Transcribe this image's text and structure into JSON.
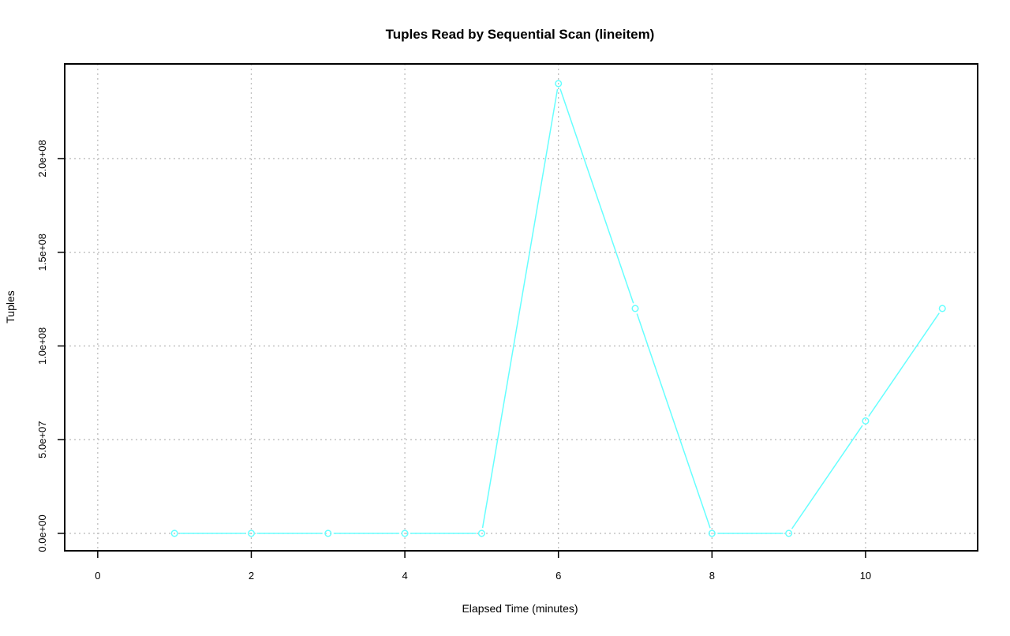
{
  "chart_data": {
    "type": "line",
    "title": "Tuples Read by Sequential Scan (lineitem)",
    "xlabel": "Elapsed Time (minutes)",
    "ylabel": "Tuples",
    "x": [
      1,
      2,
      3,
      4,
      5,
      6,
      7,
      8,
      9,
      10,
      11
    ],
    "series": [
      {
        "values": [
          0,
          0,
          0,
          0,
          0,
          240000000,
          120000000,
          0,
          0,
          60000000,
          120000000
        ],
        "color": "#66FFFF",
        "marker": "open-circle"
      }
    ],
    "xlim": [
      -0.43,
      11.46
    ],
    "ylim": [
      -9300000,
      250500000
    ],
    "xticks": [
      0,
      2,
      4,
      6,
      8,
      10
    ],
    "xtick_labels": [
      "0",
      "2",
      "4",
      "6",
      "8",
      "10"
    ],
    "yticks": [
      0,
      50000000,
      100000000,
      150000000,
      200000000
    ],
    "ytick_labels": [
      "0.0e+00",
      "5.0e+07",
      "1.0e+08",
      "1.5e+08",
      "2.0e+08"
    ],
    "grid": true,
    "grid_style": "dotted",
    "grid_color": "#BEBEBE"
  }
}
